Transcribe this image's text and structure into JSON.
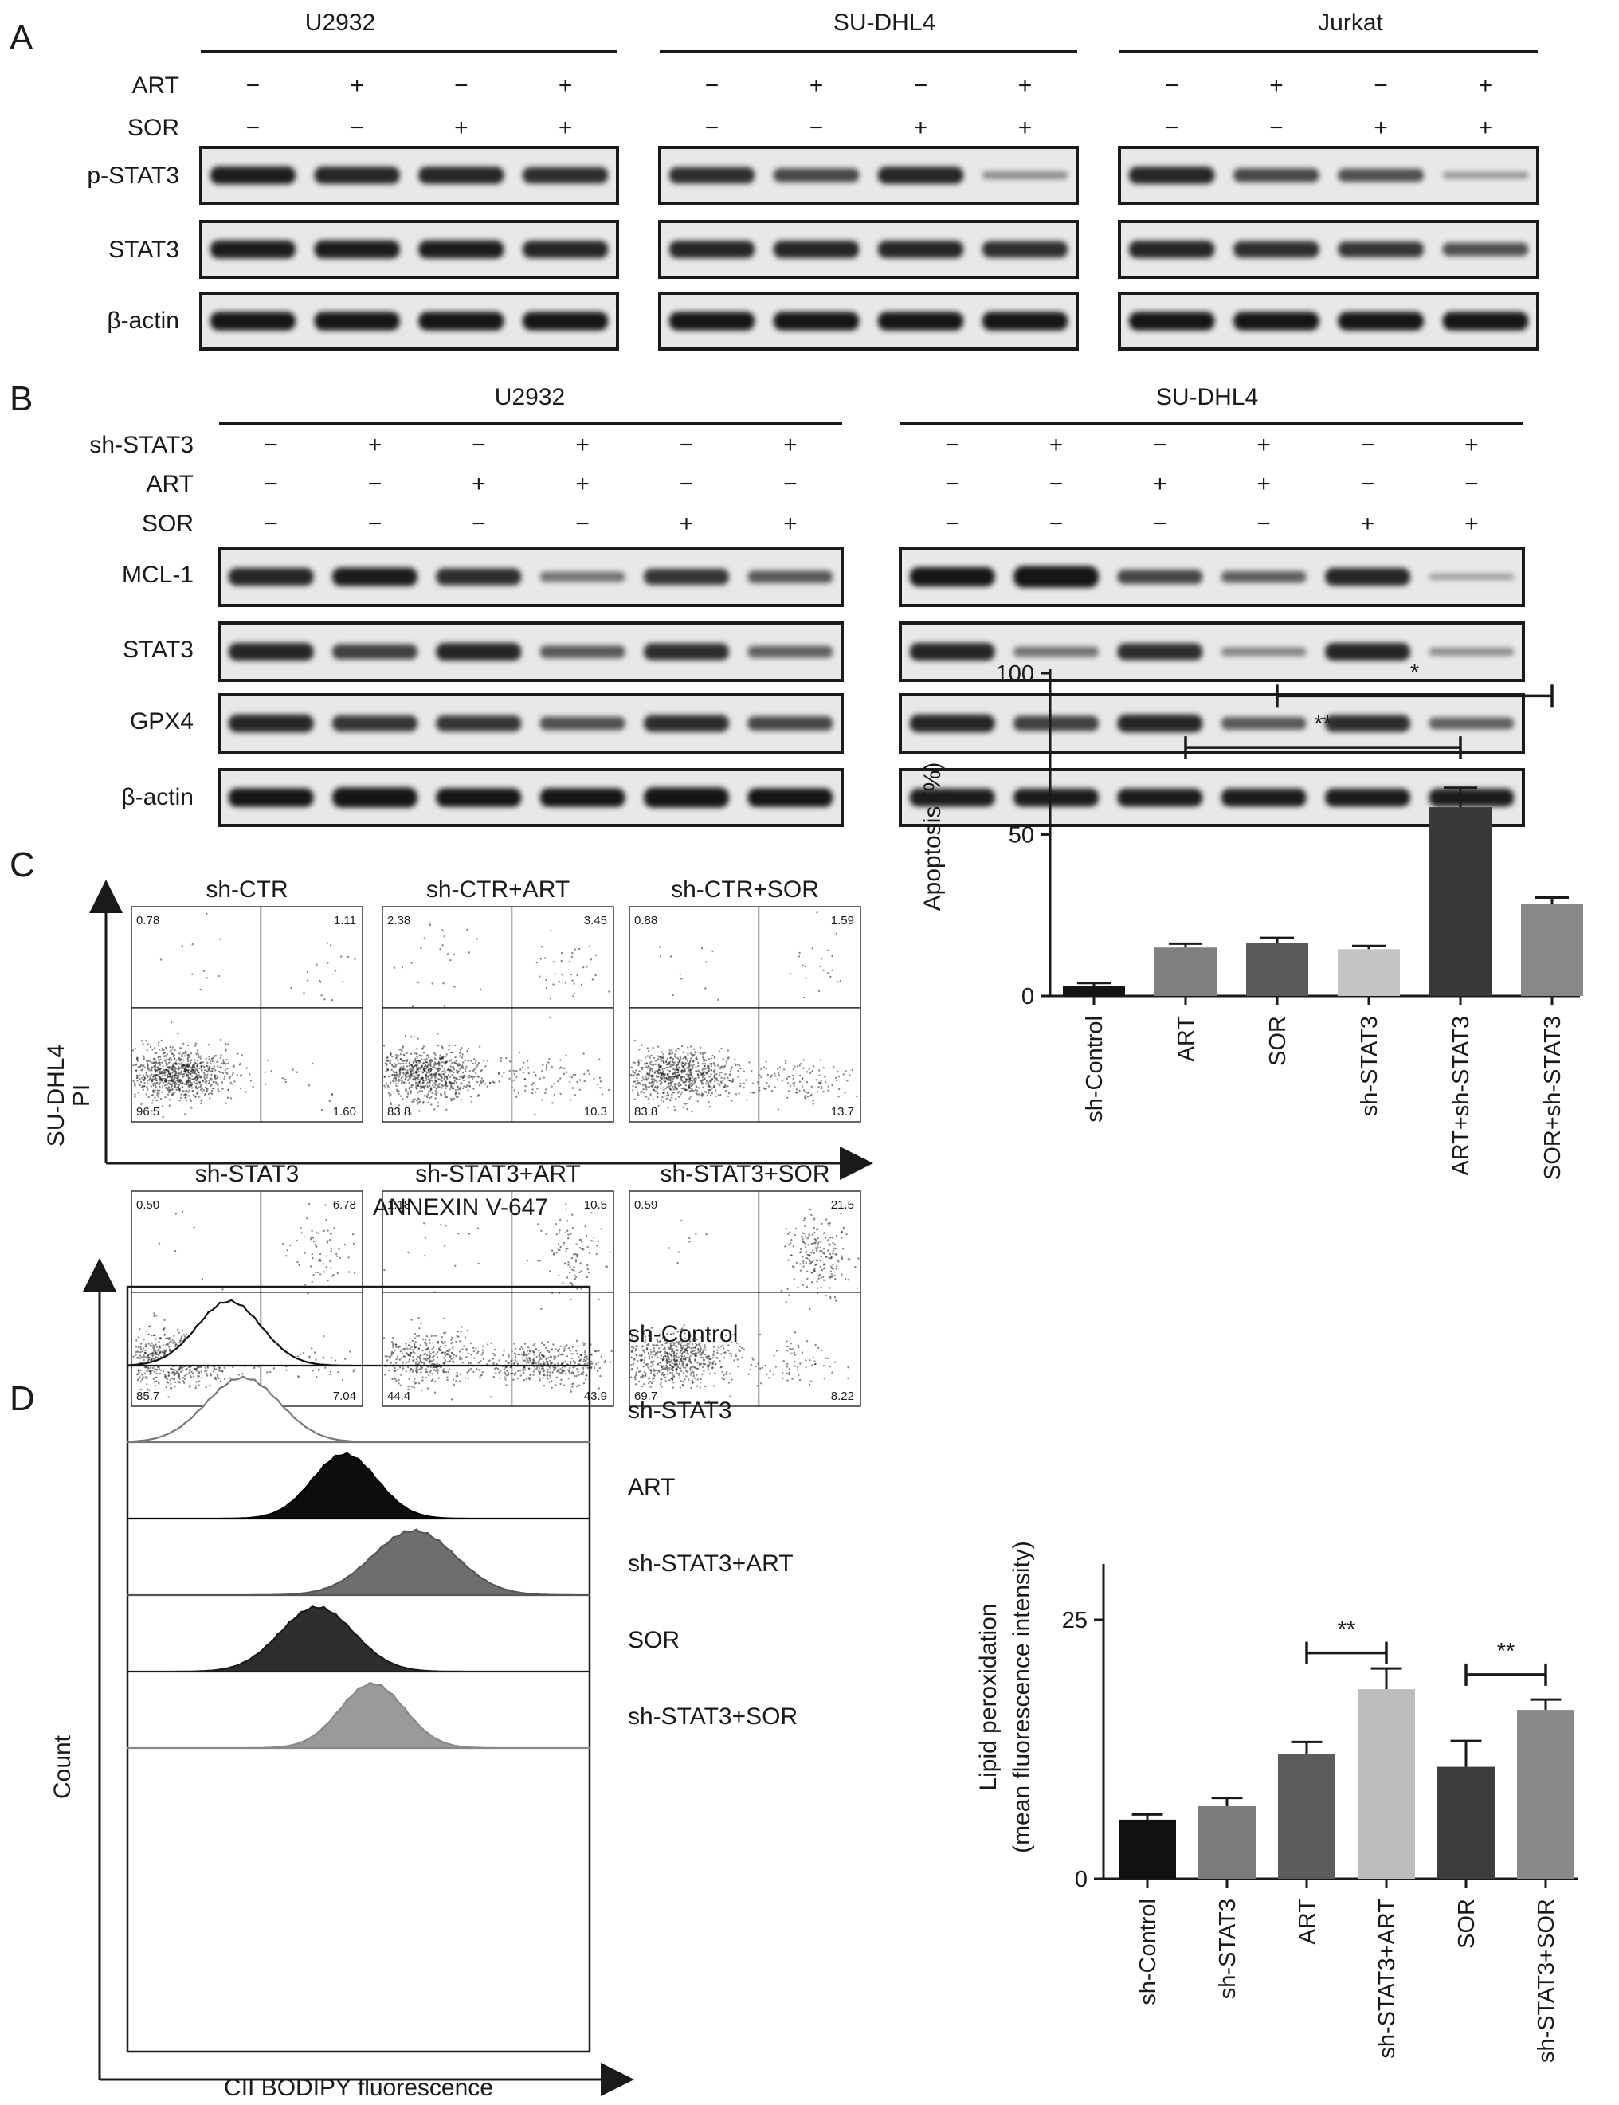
{
  "panels": {
    "A": {
      "letter": "A",
      "groups": [
        "U2932",
        "SU-DHL4",
        "Jurkat"
      ],
      "treatments": [
        {
          "label": "ART",
          "signs": [
            "−",
            "+",
            "−",
            "+"
          ]
        },
        {
          "label": "SOR",
          "signs": [
            "−",
            "−",
            "+",
            "+"
          ]
        }
      ],
      "blots": [
        {
          "label": "p-STAT3",
          "intensities": [
            [
              0.95,
              0.9,
              0.9,
              0.85
            ],
            [
              0.85,
              0.7,
              0.9,
              0.3
            ],
            [
              0.9,
              0.7,
              0.65,
              0.25
            ]
          ]
        },
        {
          "label": "STAT3",
          "intensities": [
            [
              0.95,
              0.95,
              0.95,
              0.9
            ],
            [
              0.9,
              0.9,
              0.9,
              0.85
            ],
            [
              0.9,
              0.85,
              0.8,
              0.65
            ]
          ]
        },
        {
          "label": "β-actin",
          "intensities": [
            [
              1,
              1,
              1,
              1
            ],
            [
              1,
              1,
              1,
              1
            ],
            [
              1,
              1,
              1,
              1
            ]
          ]
        }
      ]
    },
    "B": {
      "letter": "B",
      "groups": [
        "U2932",
        "SU-DHL4"
      ],
      "treatments": [
        {
          "label": "sh-STAT3",
          "signs": [
            "−",
            "+",
            "−",
            "+",
            "−",
            "+"
          ]
        },
        {
          "label": "ART",
          "signs": [
            "−",
            "−",
            "+",
            "+",
            "−",
            "−"
          ]
        },
        {
          "label": "SOR",
          "signs": [
            "−",
            "−",
            "−",
            "−",
            "+",
            "+"
          ]
        }
      ],
      "blots": [
        {
          "label": "MCL-1",
          "intensities": [
            [
              0.9,
              0.95,
              0.85,
              0.45,
              0.8,
              0.6
            ],
            [
              1,
              1.15,
              0.7,
              0.55,
              0.9,
              0.2
            ]
          ]
        },
        {
          "label": "STAT3",
          "intensities": [
            [
              0.9,
              0.75,
              0.9,
              0.6,
              0.85,
              0.55
            ],
            [
              0.9,
              0.45,
              0.85,
              0.35,
              0.9,
              0.3
            ]
          ]
        },
        {
          "label": "GPX4",
          "intensities": [
            [
              0.9,
              0.8,
              0.8,
              0.65,
              0.85,
              0.7
            ],
            [
              0.9,
              0.75,
              0.9,
              0.6,
              0.85,
              0.55
            ]
          ]
        },
        {
          "label": "β-actin",
          "intensities": [
            [
              1,
              1.1,
              1,
              1,
              1.1,
              1
            ],
            [
              0.95,
              0.95,
              0.95,
              0.95,
              0.95,
              0.95
            ]
          ]
        }
      ]
    },
    "C": {
      "letter": "C",
      "ylabel_line1": "SU-DHL4",
      "ylabel_line2": "PI",
      "xlabel": "ANNEXIN V-647",
      "plots": [
        {
          "title": "sh-CTR",
          "q": [
            "0.78",
            "1.11",
            "96.5",
            "1.60"
          ]
        },
        {
          "title": "sh-CTR+ART",
          "q": [
            "2.38",
            "3.45",
            "83.8",
            "10.3"
          ]
        },
        {
          "title": "sh-CTR+SOR",
          "q": [
            "0.88",
            "1.59",
            "83.8",
            "13.7"
          ]
        },
        {
          "title": "sh-STAT3",
          "q": [
            "0.50",
            "6.78",
            "85.7",
            "7.04"
          ]
        },
        {
          "title": "sh-STAT3+ART",
          "q": [
            "1.18",
            "10.5",
            "44.4",
            "43.9"
          ]
        },
        {
          "title": "sh-STAT3+SOR",
          "q": [
            "0.59",
            "21.5",
            "69.7",
            "8.22"
          ]
        }
      ]
    },
    "D": {
      "letter": "D",
      "ylabel": "Count",
      "xlabel": "CII BODIPY fluorescence",
      "histograms": [
        {
          "label": "sh-Control",
          "color": "#ffffff",
          "stroke": "#111111"
        },
        {
          "label": "sh-STAT3",
          "color": "#ffffff",
          "stroke": "#777777"
        },
        {
          "label": "ART",
          "color": "#0d0d0d",
          "stroke": "#000000"
        },
        {
          "label": "sh-STAT3+ART",
          "color": "#6e6e6e",
          "stroke": "#555555"
        },
        {
          "label": "SOR",
          "color": "#2e2e2e",
          "stroke": "#1a1a1a"
        },
        {
          "label": "sh-STAT3+SOR",
          "color": "#9a9a9a",
          "stroke": "#888888"
        }
      ]
    }
  },
  "chart_data": [
    {
      "type": "bar",
      "panel": "C",
      "categories": [
        "sh-Control",
        "ART",
        "SOR",
        "sh-STAT3",
        "ART+sh-STAT3",
        "SOR+sh-STAT3"
      ],
      "values": [
        3,
        15,
        16.5,
        14.5,
        58.5,
        28.5
      ],
      "errors": [
        1,
        1.2,
        1.5,
        1,
        6,
        2
      ],
      "colors": [
        "#141414",
        "#7f7f7f",
        "#5a5a5a",
        "#c4c4c4",
        "#393939",
        "#888888"
      ],
      "ylabel": "Apoptosis (%)",
      "ylim": [
        0,
        100
      ],
      "yticks": [
        0,
        50,
        100
      ],
      "significance": [
        {
          "from": 1,
          "to": 4,
          "label": "**",
          "y": 77
        },
        {
          "from": 2,
          "to": 5,
          "label": "*",
          "y": 93
        }
      ]
    },
    {
      "type": "bar",
      "panel": "D",
      "categories": [
        "sh-Control",
        "sh-STAT3",
        "ART",
        "sh-STAT3+ART",
        "SOR",
        "sh-STAT3+SOR"
      ],
      "values": [
        5.7,
        7,
        12,
        18.3,
        10.8,
        16.3
      ],
      "errors": [
        0.5,
        0.8,
        1.2,
        2,
        2.5,
        1
      ],
      "colors": [
        "#111111",
        "#7b7b7b",
        "#5c5c5c",
        "#bdbdbd",
        "#3c3c3c",
        "#8a8a8a"
      ],
      "ylabel_line1": "Lipid peroxidation",
      "ylabel_line2": "(mean fluorescence intensity)",
      "ylim": [
        0,
        30
      ],
      "yticks": [
        0,
        25
      ],
      "significance": [
        {
          "from": 2,
          "to": 3,
          "label": "**",
          "y": 21.8
        },
        {
          "from": 4,
          "to": 5,
          "label": "**",
          "y": 19.7
        }
      ]
    }
  ]
}
